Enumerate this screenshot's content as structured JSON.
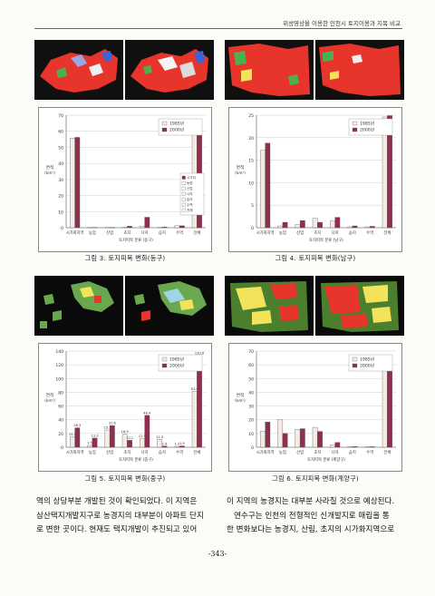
{
  "header": {
    "running_title": "위성영상을 이용한 인천시 토지이용과 지목 비교"
  },
  "common": {
    "y_label_1": "면적",
    "y_label_2": "(km²)",
    "x_label_prefix": "토지피복 분류",
    "legend": [
      "1985년",
      "2000년"
    ],
    "colors": {
      "y1985": "#f4ece3",
      "y2000": "#8e2f4e",
      "red_land": "#e8352c"
    },
    "categories": [
      "시가화지역",
      "농업",
      "산업",
      "초지",
      "나지",
      "습지",
      "수역",
      "전체"
    ]
  },
  "chart_data": [
    {
      "type": "bar",
      "title": "토지피복 변화(동구)",
      "caption_num": "그림 3.",
      "xlabel_suffix": "(동구)",
      "categories": [
        "시가화지역",
        "농업",
        "산업",
        "초지",
        "나지",
        "습지",
        "수역",
        "전체"
      ],
      "series": [
        {
          "name": "1985년",
          "values": [
            55.8,
            0.1,
            0.1,
            0.2,
            0.8,
            0.1,
            1.3,
            65.2
          ]
        },
        {
          "name": "2000년",
          "values": [
            56.2,
            0.1,
            0.1,
            0.9,
            6.5,
            0.4,
            1.2,
            65.9
          ]
        }
      ],
      "ylim": [
        0,
        70
      ],
      "yticks": [
        0,
        10,
        20,
        30,
        40,
        50,
        60,
        70
      ],
      "extra_legend": [
        "시가지",
        "농업",
        "산업",
        "나지",
        "습지",
        "수역",
        "전체"
      ]
    },
    {
      "type": "bar",
      "title": "토지피복 변화(남구)",
      "caption_num": "그림 4.",
      "xlabel_suffix": "(남구)",
      "categories": [
        "시가화지역",
        "농업",
        "산업",
        "초지",
        "나지",
        "습지",
        "수역",
        "전체"
      ],
      "series": [
        {
          "name": "1985년",
          "values": [
            17.2,
            0.4,
            0.7,
            2.1,
            1.5,
            0.2,
            0.2,
            24.6
          ]
        },
        {
          "name": "2000년",
          "values": [
            18.8,
            1.2,
            1.6,
            1.2,
            2.3,
            0.4,
            0.3,
            24.9
          ]
        }
      ],
      "ylim": [
        0,
        25
      ],
      "yticks": [
        0,
        5,
        10,
        15,
        20,
        25
      ]
    },
    {
      "type": "bar",
      "title": "토지피복 변화(중구)",
      "caption_num": "그림 5.",
      "xlabel_suffix": "(중구)",
      "categories": [
        "시가화지역",
        "농업",
        "산업",
        "초지",
        "나지",
        "습지",
        "수역",
        "전체"
      ],
      "series": [
        {
          "name": "1985년",
          "values": [
            15.2,
            2.5,
            25.1,
            18.9,
            12.5,
            11.3,
            1.2,
            81.4
          ]
        },
        {
          "name": "2000년",
          "values": [
            28.3,
            13.3,
            31.6,
            10.1,
            46.4,
            1.6,
            1.9,
            133.6
          ]
        }
      ],
      "data_labels": [
        [
          "15.2",
          "2.5",
          "25.1",
          "18.9",
          "12.5",
          "11.3",
          "1.2",
          "81.4"
        ],
        [
          "28.3",
          "13.3",
          "31.6",
          "10.1",
          "46.4",
          "1.6",
          "1.9",
          "133.6"
        ]
      ],
      "ylim": [
        0,
        140
      ],
      "yticks": [
        0,
        20,
        40,
        60,
        80,
        100,
        120,
        140
      ]
    },
    {
      "type": "bar",
      "title": "토지피복 변화(계양구)",
      "caption_num": "그림 6.",
      "xlabel_suffix": "(계양구)",
      "categories": [
        "시가화지역",
        "농업",
        "산업",
        "초지",
        "나지",
        "습지",
        "수역",
        "전체"
      ],
      "series": [
        {
          "name": "1985년",
          "values": [
            11.8,
            20.2,
            13.1,
            14.5,
            1.5,
            0.4,
            0.3,
            63.8
          ]
        },
        {
          "name": "2000년",
          "values": [
            18.4,
            10.1,
            13.5,
            11.5,
            3.5,
            0.5,
            0.4,
            64.3
          ]
        }
      ],
      "ylim": [
        0,
        70
      ],
      "yticks": [
        0,
        10,
        20,
        30,
        40,
        50,
        60,
        70
      ]
    }
  ],
  "body_left": [
    "역의 상당부분 개발된 것이 확인되었다. 이 지역은",
    "삼산택지개발지구로 농경지의 대부분이 아파트 단지",
    "로 변한 곳이다. 현재도 택지개발이 추진되고 있어"
  ],
  "body_right": [
    "이 지역의 농경지는 대부분 사라질 것으로 예상된다.",
    "연수구는 인천의 전형적인 신개발지로 매립을 통",
    "한 변화보다는 농경지, 산림, 초지의 시가화지역으로"
  ],
  "page_number": "-343-"
}
